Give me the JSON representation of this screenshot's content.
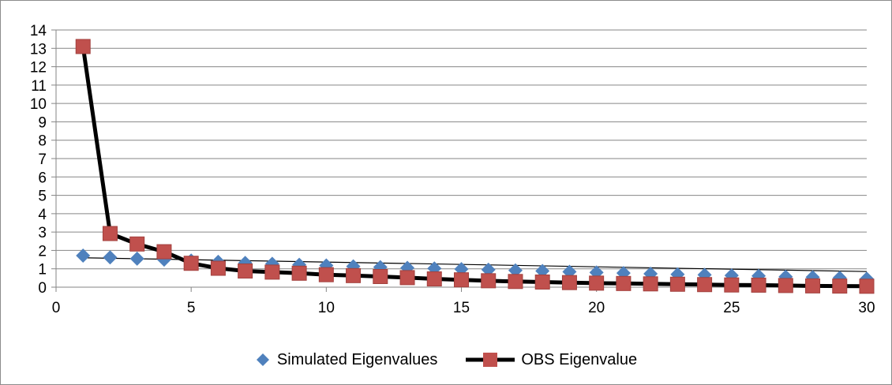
{
  "chart_data": {
    "type": "line",
    "title": "",
    "xlabel": "",
    "ylabel": "",
    "xlim": [
      0,
      30
    ],
    "ylim": [
      0,
      14
    ],
    "x_ticks": [
      0,
      5,
      10,
      15,
      20,
      25,
      30
    ],
    "y_ticks": [
      0,
      1,
      2,
      3,
      4,
      5,
      6,
      7,
      8,
      9,
      10,
      11,
      12,
      13,
      14
    ],
    "grid": "horizontal",
    "legend_position": "bottom",
    "series": [
      {
        "name": "Simulated Eigenvalues",
        "marker": "diamond",
        "color": "#4F81BD",
        "line": "trendline",
        "x": [
          1,
          2,
          3,
          4,
          5,
          6,
          7,
          8,
          9,
          10,
          11,
          12,
          13,
          14,
          15,
          16,
          17,
          18,
          19,
          20,
          21,
          22,
          23,
          24,
          25,
          26,
          27,
          28,
          29,
          30
        ],
        "values": [
          1.72,
          1.62,
          1.55,
          1.5,
          1.45,
          1.38,
          1.32,
          1.27,
          1.22,
          1.18,
          1.13,
          1.09,
          1.05,
          1.02,
          0.98,
          0.95,
          0.91,
          0.88,
          0.84,
          0.8,
          0.77,
          0.73,
          0.7,
          0.67,
          0.64,
          0.61,
          0.57,
          0.54,
          0.51,
          0.46
        ],
        "trendline": {
          "x": [
            1,
            30
          ],
          "values": [
            1.6,
            0.85
          ]
        }
      },
      {
        "name": "OBS Eigenvalue",
        "marker": "square",
        "color": "#C0504D",
        "line_color": "#000000",
        "x": [
          1,
          2,
          3,
          4,
          5,
          6,
          7,
          8,
          9,
          10,
          11,
          12,
          13,
          14,
          15,
          16,
          17,
          18,
          19,
          20,
          21,
          22,
          23,
          24,
          25,
          26,
          27,
          28,
          29,
          30
        ],
        "values": [
          13.1,
          2.92,
          2.35,
          1.93,
          1.3,
          1.03,
          0.88,
          0.82,
          0.76,
          0.68,
          0.63,
          0.58,
          0.52,
          0.45,
          0.4,
          0.35,
          0.31,
          0.28,
          0.25,
          0.22,
          0.2,
          0.18,
          0.16,
          0.14,
          0.12,
          0.11,
          0.09,
          0.07,
          0.06,
          0.05
        ]
      }
    ]
  }
}
